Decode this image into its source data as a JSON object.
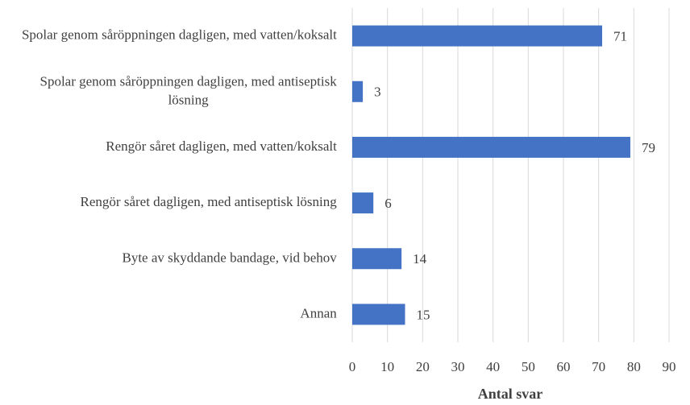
{
  "chart_data": {
    "type": "bar",
    "orientation": "horizontal",
    "categories": [
      "Spolar genom såröppningen dagligen, med vatten/koksalt",
      "Spolar genom såröppningen dagligen, med antiseptisk lösning",
      "Rengör såret dagligen, med vatten/koksalt",
      "Rengör såret dagligen, med antiseptisk lösning",
      "Byte av skyddande bandage, vid behov",
      "Annan"
    ],
    "values": [
      71,
      3,
      79,
      6,
      14,
      15
    ],
    "color": "#4472c4",
    "x_label": "Antal svar",
    "xlim": [
      0,
      90
    ],
    "xticks": [
      0,
      10,
      20,
      30,
      40,
      50,
      60,
      70,
      80,
      90
    ],
    "grid": true
  }
}
